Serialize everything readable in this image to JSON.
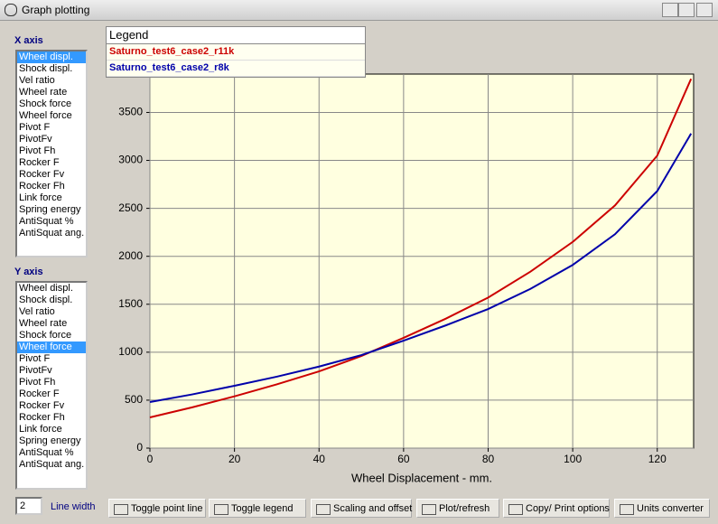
{
  "window": {
    "title": "Graph plotting"
  },
  "x_axis_list": {
    "label": "X axis",
    "selected": 0,
    "items": [
      "Wheel displ.",
      "Shock displ.",
      "Vel ratio",
      "Wheel rate",
      "Shock force",
      "Wheel force",
      "Pivot F",
      "PivotFv",
      "Pivot Fh",
      "Rocker F",
      "Rocker Fv",
      "Rocker Fh",
      "Link force",
      "Spring energy",
      "AntiSquat %",
      "AntiSquat ang."
    ]
  },
  "y_axis_list": {
    "label": "Y axis",
    "selected": 5,
    "items": [
      "Wheel displ.",
      "Shock displ.",
      "Vel ratio",
      "Wheel rate",
      "Shock force",
      "Wheel force",
      "Pivot F",
      "PivotFv",
      "Pivot Fh",
      "Rocker F",
      "Rocker Fv",
      "Rocker Fh",
      "Link force",
      "Spring energy",
      "AntiSquat %",
      "AntiSquat ang."
    ]
  },
  "line_width": {
    "value": "2",
    "label": "Line width"
  },
  "buttons": [
    "Toggle point line",
    "Toggle legend",
    "Scaling and offset",
    "Plot/refresh",
    "Copy/ Print options",
    "Units converter"
  ],
  "chart_data": {
    "type": "line",
    "x_label": "Wheel Displacement - mm.",
    "legend_title": "Legend",
    "x": [
      0,
      10,
      20,
      30,
      40,
      50,
      60,
      70,
      80,
      90,
      100,
      110,
      120,
      128
    ],
    "series": [
      {
        "name": "Saturno_test6_case2_r11k",
        "color": "#cc0000",
        "values": [
          320,
          425,
          540,
          665,
          800,
          960,
          1150,
          1350,
          1570,
          1840,
          2150,
          2530,
          3050,
          3850
        ]
      },
      {
        "name": "Saturno_test6_case2_r8k",
        "color": "#0000aa",
        "values": [
          480,
          560,
          650,
          745,
          850,
          970,
          1120,
          1280,
          1450,
          1660,
          1910,
          2230,
          2680,
          3280
        ]
      }
    ],
    "xlim": [
      0,
      128.6
    ],
    "ylim": [
      0,
      3900
    ],
    "xticks": [
      0,
      20,
      40,
      60,
      80,
      100,
      120
    ],
    "yticks": [
      0,
      500,
      1000,
      1500,
      2000,
      2500,
      3000,
      3500
    ],
    "grid": true,
    "background": "#ffffe0"
  }
}
